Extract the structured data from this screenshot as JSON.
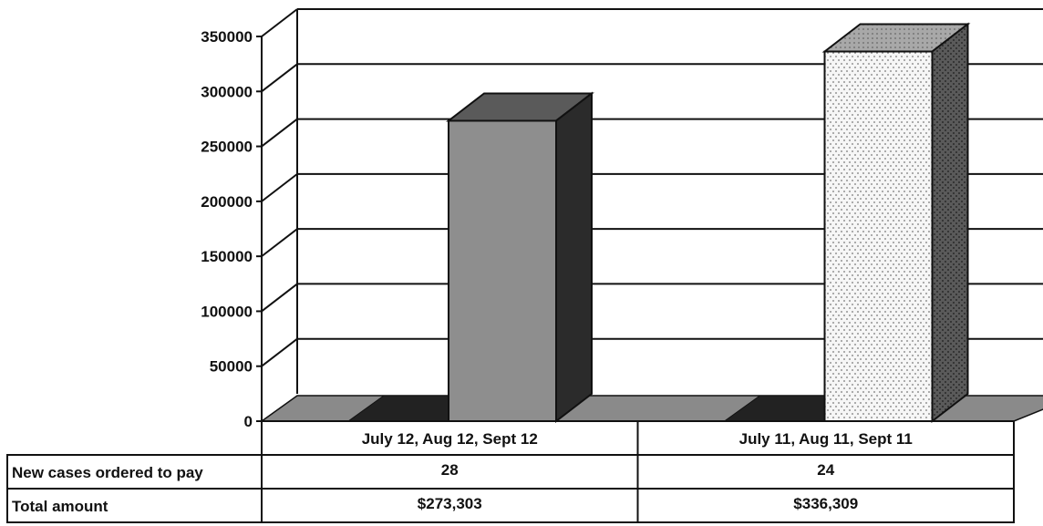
{
  "chart_data": {
    "type": "bar",
    "style": "3d",
    "categories": [
      "July 12, Aug 12, Sept 12",
      "July 11, Aug 11, Sept 11"
    ],
    "values": [
      273303,
      336309
    ],
    "ylim": [
      0,
      350000
    ],
    "yticks": [
      "0",
      "50000",
      "100000",
      "150000",
      "200000",
      "250000",
      "300000",
      "350000"
    ],
    "grid": true,
    "bar_colors": [
      "#8c8c8c",
      "#f4f4f4"
    ],
    "table": {
      "rows": [
        {
          "label": "New cases ordered to pay",
          "values": [
            "28",
            "24"
          ]
        },
        {
          "label": "Total amount",
          "values": [
            "$273,303",
            "$336,309"
          ]
        }
      ]
    }
  }
}
